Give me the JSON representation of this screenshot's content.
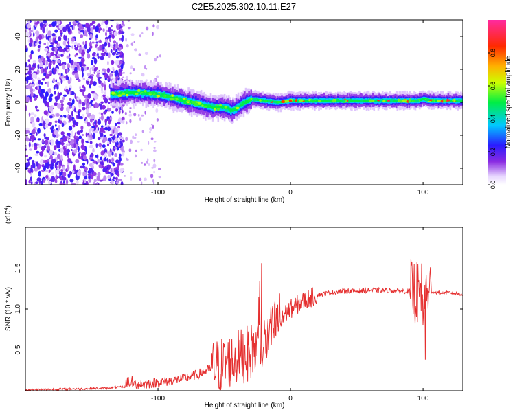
{
  "figure_title": "C2E5.2025.302.10.11.E27",
  "chart_data": [
    {
      "type": "heatmap",
      "title": "C2E5.2025.302.10.11.E27",
      "xlabel": "Height of straight line (km)",
      "ylabel": "Frequency (Hz)",
      "xlim": [
        -200,
        130
      ],
      "ylim": [
        -50,
        50
      ],
      "xticks": [
        -100,
        0,
        100
      ],
      "yticks": [
        -40,
        -20,
        0,
        20,
        40
      ],
      "xtick_labels": [
        "-100",
        "0",
        "100"
      ],
      "ytick_labels": [
        "-40",
        "-20",
        "0",
        "20",
        "40"
      ],
      "colorbar": {
        "label": "Normalized spectral amplitude",
        "range": [
          0.0,
          1.0
        ],
        "ticks": [
          0.0,
          0.2,
          0.4,
          0.6,
          0.8
        ],
        "tick_labels": [
          "0.0",
          "0.2",
          "0.4",
          "0.6",
          "0.8"
        ],
        "colormap": "rainbow (white→purple→blue→cyan→green→yellow→orange→red→magenta)"
      },
      "ridge": {
        "description": "dominant spectral line frequency vs height",
        "x": [
          -135,
          -120,
          -100,
          -90,
          -80,
          -70,
          -60,
          -50,
          -45,
          -40,
          -35,
          -30,
          -20,
          -10,
          0,
          20,
          50,
          80,
          95,
          100,
          105,
          130
        ],
        "y": [
          5,
          6,
          5,
          3,
          1,
          -1,
          -3,
          -3,
          -5,
          -3,
          0,
          2,
          1,
          0,
          1,
          1,
          1,
          1,
          1,
          2,
          1,
          1
        ]
      },
      "noise_region": {
        "x_range": [
          -200,
          -130
        ],
        "description": "broadband scattered noise across all frequencies"
      }
    },
    {
      "type": "line",
      "xlabel": "Height of straight line (km)",
      "ylabel": "SNR (10 * v/v)",
      "multiplier_label": "(x10",
      "multiplier_exp": "4",
      "multiplier_close": ")",
      "xlim": [
        -200,
        130
      ],
      "ylim": [
        0,
        2.0
      ],
      "xticks": [
        -100,
        0,
        100
      ],
      "yticks": [
        0.5,
        1.0,
        1.5
      ],
      "xtick_labels": [
        "-100",
        "0",
        "100"
      ],
      "ytick_labels": [
        "0.5",
        "1.0",
        "1.5"
      ],
      "color": "#e53030",
      "x": [
        -200,
        -170,
        -140,
        -125,
        -120,
        -110,
        -100,
        -90,
        -80,
        -70,
        -60,
        -50,
        -40,
        -30,
        -20,
        -15,
        -10,
        0,
        10,
        20,
        30,
        40,
        50,
        60,
        70,
        80,
        90,
        95,
        100,
        103,
        105,
        110,
        120,
        130
      ],
      "y": [
        0.01,
        0.02,
        0.03,
        0.05,
        0.08,
        0.08,
        0.1,
        0.12,
        0.15,
        0.2,
        0.27,
        0.33,
        0.4,
        0.48,
        0.58,
        0.7,
        0.85,
        1.0,
        1.1,
        1.17,
        1.2,
        1.22,
        1.22,
        1.23,
        1.23,
        1.22,
        1.22,
        1.2,
        1.15,
        1.0,
        1.22,
        1.2,
        1.2,
        1.18
      ]
    }
  ]
}
